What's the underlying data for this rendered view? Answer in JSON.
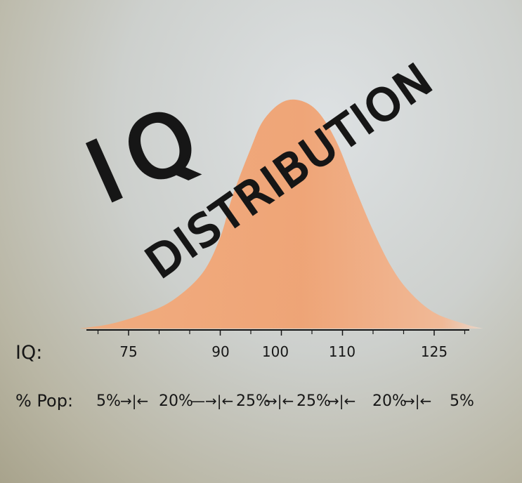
{
  "chart_data": {
    "type": "area",
    "title_line1": "IQ",
    "title_line2": "DISTRIBUTION",
    "x_axis_label": "IQ:",
    "x_ticks": [
      "75",
      "90",
      "100",
      "110",
      "125"
    ],
    "x_tick_values": [
      75,
      90,
      100,
      110,
      125
    ],
    "xlim": [
      65,
      135
    ],
    "pop_label": "% Pop:",
    "pop_segments": [
      "5%",
      "20%",
      "25%",
      "25%",
      "20%",
      "5%"
    ],
    "series": [
      {
        "x": [
          67,
          72,
          77,
          82,
          87,
          90,
          92,
          95,
          97,
          100,
          103,
          106,
          109,
          112,
          115,
          118,
          121,
          125,
          130,
          133
        ],
        "values": [
          0.0,
          0.02,
          0.06,
          0.12,
          0.24,
          0.4,
          0.58,
          0.79,
          0.91,
          0.99,
          1.0,
          0.95,
          0.82,
          0.62,
          0.43,
          0.27,
          0.16,
          0.07,
          0.02,
          0.0
        ]
      }
    ],
    "colors": {
      "fill": "#f2a574",
      "fill_edge": "#ee9a66",
      "ink": "#161616"
    }
  }
}
